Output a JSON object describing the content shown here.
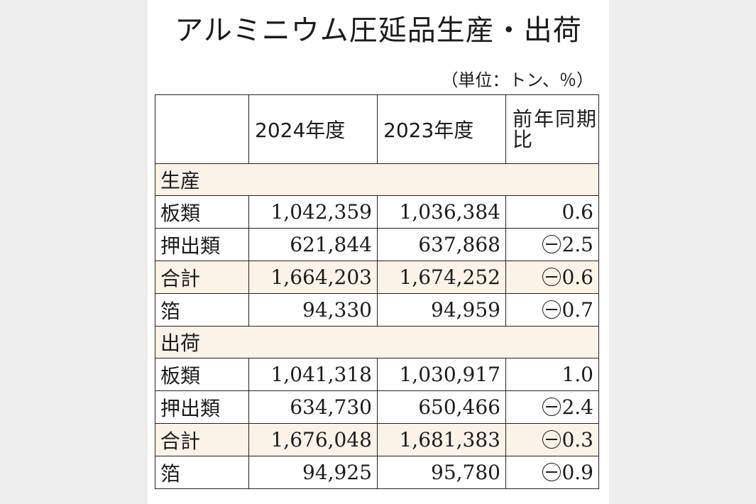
{
  "title": "アルミニウム圧延品生産・出荷",
  "unit": "（単位：トン、％）",
  "header": {
    "col_2024": "2024年度",
    "col_2023": "2023年度",
    "col_yoy": "前年同期比"
  },
  "sections": [
    {
      "label": "生産",
      "rows": [
        {
          "label": "板類",
          "v2024": "1,042,359",
          "v2023": "1,036,384",
          "yoy": "0.6",
          "negative": false
        },
        {
          "label": "押出類",
          "v2024": "621,844",
          "v2023": "637,868",
          "yoy": "2.5",
          "negative": true
        },
        {
          "label": "合計",
          "v2024": "1,664,203",
          "v2023": "1,674,252",
          "yoy": "0.6",
          "negative": true
        },
        {
          "label": "箔",
          "v2024": "94,330",
          "v2023": "94,959",
          "yoy": "0.7",
          "negative": true
        }
      ]
    },
    {
      "label": "出荷",
      "rows": [
        {
          "label": "板類",
          "v2024": "1,041,318",
          "v2023": "1,030,917",
          "yoy": "1.0",
          "negative": false
        },
        {
          "label": "押出類",
          "v2024": "634,730",
          "v2023": "650,466",
          "yoy": "2.4",
          "negative": true
        },
        {
          "label": "合計",
          "v2024": "1,676,048",
          "v2023": "1,681,383",
          "yoy": "0.3",
          "negative": true
        },
        {
          "label": "箔",
          "v2024": "94,925",
          "v2023": "95,780",
          "yoy": "0.9",
          "negative": true
        }
      ]
    }
  ],
  "colors": {
    "highlight_row": "#fbf2e8",
    "border": "#222222"
  }
}
